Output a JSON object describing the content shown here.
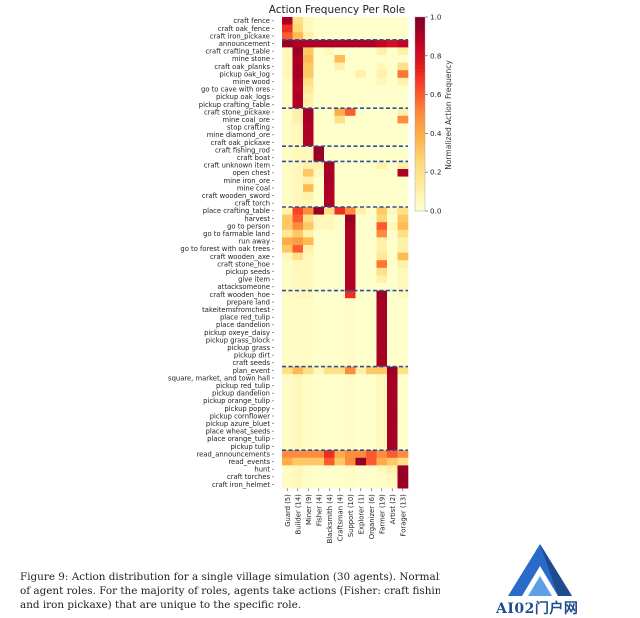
{
  "chart_data": {
    "type": "heatmap",
    "title": "Action Frequency Per Role",
    "colorbar_label": "Normalized Action Frequency",
    "colorbar_ticks": [
      0.0,
      0.2,
      0.4,
      0.6,
      0.8,
      1.0
    ],
    "colormap": [
      "#ffffcc",
      "#ffeda0",
      "#fed976",
      "#feb24c",
      "#fd8d3c",
      "#fc4e2a",
      "#e31a1c",
      "#bd0026",
      "#800026"
    ],
    "separator_color": "#2b4fa0",
    "roles": [
      "Guard (5)",
      "Builder (14)",
      "Miner (9)",
      "Fisher (4)",
      "Blacksmith (4)",
      "Craftsman (4)",
      "Support (10)",
      "Explorer (1)",
      "Organizer (6)",
      "Farmer (19)",
      "Artist (2)",
      "Forager (13)"
    ],
    "actions": [
      "craft fence",
      "craft oak_fence",
      "craft iron_pickaxe",
      "announcement",
      "craft crafting_table",
      "mine stone",
      "craft oak_planks",
      "pickup oak_log",
      "mine wood",
      "go to cave with ores",
      "pickup oak_logs",
      "pickup crafting_table",
      "craft stone_pickaxe",
      "mine coal_ore",
      "stop crafting",
      "mine diamond_ore",
      "craft oak_pickaxe",
      "craft fishing_rod",
      "craft boat",
      "craft unknown item",
      "open chest",
      "mine iron_ore",
      "mine coal",
      "craft wooden_sword",
      "craft torch",
      "place crafting_table",
      "harvest",
      "go to person",
      "go to farmable land",
      "run away",
      "go to forest with oak trees",
      "craft wooden_axe",
      "craft stone_hoe",
      "pickup seeds",
      "give item",
      "attacksomeone",
      "craft wooden_hoe",
      "prepare land",
      "takeitemsfromchest",
      "place red_tulip",
      "place dandelion",
      "pickup oxeye_daisy",
      "pickup grass_block",
      "pickup grass",
      "pickup dirt",
      "craft seeds",
      "plan_event",
      "square, market, and town hall",
      "pickup red_tulip",
      "pickup dandelion",
      "pickup orange_tulip",
      "pickup poppy",
      "pickup cornflower",
      "pickup azure_bluet",
      "place wheat_seeds",
      "place orange_tulip",
      "pickup tulip",
      "read_announcements",
      "read_events",
      "hunt",
      "craft torches",
      "craft iron_helmet"
    ],
    "separators_after_row": [
      2,
      11,
      16,
      18,
      24,
      35,
      45,
      56
    ],
    "values": [
      [
        0.9,
        0.2,
        0.05,
        0,
        0,
        0,
        0,
        0,
        0,
        0,
        0,
        0
      ],
      [
        0.7,
        0.25,
        0.05,
        0,
        0,
        0,
        0,
        0,
        0,
        0,
        0,
        0
      ],
      [
        0.6,
        0.35,
        0.1,
        0,
        0,
        0,
        0,
        0,
        0,
        0,
        0,
        0
      ],
      [
        0.95,
        0.9,
        0.9,
        0.9,
        0.9,
        0.9,
        0.9,
        0.9,
        0.9,
        0.85,
        0.8,
        0.85
      ],
      [
        0.05,
        0.95,
        0.3,
        0,
        0.05,
        0,
        0,
        0,
        0,
        0.1,
        0,
        0.1
      ],
      [
        0.05,
        0.9,
        0.35,
        0,
        0,
        0.35,
        0,
        0,
        0,
        0,
        0,
        0
      ],
      [
        0.05,
        0.92,
        0.3,
        0,
        0,
        0.1,
        0,
        0,
        0,
        0.05,
        0,
        0.2
      ],
      [
        0.05,
        0.92,
        0.3,
        0,
        0,
        0,
        0,
        0.1,
        0,
        0.1,
        0,
        0.55
      ],
      [
        0.03,
        0.9,
        0.2,
        0,
        0,
        0,
        0,
        0,
        0,
        0.05,
        0,
        0.1
      ],
      [
        0.02,
        0.88,
        0.15,
        0,
        0,
        0,
        0,
        0,
        0,
        0,
        0,
        0
      ],
      [
        0.02,
        0.9,
        0.1,
        0,
        0,
        0,
        0,
        0,
        0,
        0,
        0,
        0
      ],
      [
        0.02,
        0.9,
        0.1,
        0,
        0,
        0,
        0,
        0,
        0,
        0,
        0,
        0
      ],
      [
        0.02,
        0.1,
        0.92,
        0,
        0,
        0.4,
        0.6,
        0,
        0,
        0,
        0,
        0.1
      ],
      [
        0.02,
        0.1,
        0.92,
        0,
        0,
        0.2,
        0,
        0,
        0,
        0,
        0,
        0.5
      ],
      [
        0.02,
        0.05,
        0.9,
        0,
        0,
        0,
        0,
        0,
        0,
        0,
        0,
        0
      ],
      [
        0.02,
        0.05,
        0.9,
        0,
        0,
        0,
        0,
        0,
        0,
        0,
        0,
        0
      ],
      [
        0.02,
        0.05,
        0.9,
        0,
        0,
        0,
        0,
        0,
        0,
        0,
        0,
        0
      ],
      [
        0.02,
        0.05,
        0.05,
        0.95,
        0,
        0,
        0,
        0,
        0,
        0,
        0,
        0
      ],
      [
        0.02,
        0.05,
        0.05,
        0.95,
        0,
        0,
        0,
        0,
        0,
        0,
        0,
        0
      ],
      [
        0.02,
        0.05,
        0.1,
        0.1,
        0.92,
        0,
        0,
        0,
        0,
        0.1,
        0,
        0.1
      ],
      [
        0.02,
        0.05,
        0.3,
        0.05,
        0.92,
        0,
        0,
        0,
        0,
        0,
        0,
        0.9
      ],
      [
        0.02,
        0.05,
        0.1,
        0,
        0.92,
        0,
        0,
        0,
        0,
        0,
        0,
        0
      ],
      [
        0.02,
        0.05,
        0.35,
        0,
        0.9,
        0,
        0,
        0,
        0,
        0,
        0,
        0
      ],
      [
        0.02,
        0.05,
        0.1,
        0,
        0.9,
        0,
        0,
        0,
        0,
        0,
        0,
        0
      ],
      [
        0.02,
        0.05,
        0.05,
        0,
        0.9,
        0,
        0,
        0,
        0,
        0,
        0,
        0
      ],
      [
        0.1,
        0.65,
        0.5,
        0.95,
        0.2,
        0.7,
        0.5,
        0.1,
        0,
        0.3,
        0.05,
        0.2
      ],
      [
        0.3,
        0.6,
        0.2,
        0.05,
        0.05,
        0,
        0.95,
        0,
        0,
        0.25,
        0,
        0.3
      ],
      [
        0.3,
        0.5,
        0.3,
        0.05,
        0.05,
        0,
        0.92,
        0,
        0,
        0.6,
        0.05,
        0.35
      ],
      [
        0.15,
        0.3,
        0.1,
        0,
        0,
        0,
        0.9,
        0,
        0,
        0.5,
        0,
        0.2
      ],
      [
        0.4,
        0.45,
        0.35,
        0,
        0,
        0,
        0.9,
        0,
        0,
        0.1,
        0,
        0.1
      ],
      [
        0.3,
        0.6,
        0.1,
        0,
        0,
        0,
        0.9,
        0,
        0,
        0.1,
        0,
        0.1
      ],
      [
        0.05,
        0.2,
        0.05,
        0,
        0,
        0,
        0.9,
        0,
        0,
        0.15,
        0,
        0.35
      ],
      [
        0.02,
        0.05,
        0.05,
        0,
        0,
        0,
        0.9,
        0,
        0,
        0.55,
        0,
        0.1
      ],
      [
        0.02,
        0.05,
        0.05,
        0,
        0,
        0,
        0.9,
        0,
        0,
        0.2,
        0,
        0.05
      ],
      [
        0.02,
        0.05,
        0.05,
        0,
        0,
        0,
        0.9,
        0,
        0,
        0.1,
        0,
        0.05
      ],
      [
        0.02,
        0.05,
        0.05,
        0,
        0,
        0,
        0.9,
        0,
        0,
        0,
        0,
        0.05
      ],
      [
        0.02,
        0.05,
        0.05,
        0,
        0,
        0,
        0.7,
        0,
        0,
        0.95,
        0,
        0.05
      ],
      [
        0.02,
        0.02,
        0.02,
        0,
        0,
        0,
        0.02,
        0,
        0,
        0.92,
        0,
        0
      ],
      [
        0.02,
        0.02,
        0.02,
        0,
        0,
        0,
        0.02,
        0,
        0,
        0.92,
        0,
        0
      ],
      [
        0.02,
        0.02,
        0.02,
        0,
        0,
        0,
        0.02,
        0,
        0,
        0.92,
        0,
        0
      ],
      [
        0.02,
        0.02,
        0.02,
        0,
        0,
        0,
        0.02,
        0,
        0,
        0.92,
        0,
        0
      ],
      [
        0.02,
        0.02,
        0.02,
        0,
        0,
        0,
        0.02,
        0,
        0,
        0.92,
        0,
        0
      ],
      [
        0.02,
        0.02,
        0.02,
        0,
        0,
        0,
        0.02,
        0,
        0,
        0.92,
        0,
        0
      ],
      [
        0.02,
        0.02,
        0.02,
        0,
        0,
        0,
        0.02,
        0,
        0,
        0.92,
        0,
        0
      ],
      [
        0.02,
        0.02,
        0.02,
        0,
        0,
        0,
        0.02,
        0,
        0,
        0.92,
        0,
        0
      ],
      [
        0.02,
        0.02,
        0.02,
        0,
        0,
        0,
        0.02,
        0,
        0,
        0.92,
        0,
        0
      ],
      [
        0.2,
        0.35,
        0.2,
        0.05,
        0.2,
        0.2,
        0.5,
        0.1,
        0.3,
        0.3,
        0.95,
        0.2
      ],
      [
        0.02,
        0.05,
        0.02,
        0,
        0,
        0,
        0.02,
        0,
        0,
        0.05,
        0.92,
        0
      ],
      [
        0.02,
        0.05,
        0.02,
        0,
        0,
        0,
        0.02,
        0,
        0,
        0.05,
        0.92,
        0
      ],
      [
        0.02,
        0.05,
        0.02,
        0,
        0,
        0,
        0.02,
        0,
        0,
        0.05,
        0.92,
        0
      ],
      [
        0.02,
        0.05,
        0.02,
        0,
        0,
        0,
        0.02,
        0,
        0,
        0.05,
        0.92,
        0
      ],
      [
        0.02,
        0.05,
        0.02,
        0,
        0,
        0,
        0.02,
        0,
        0,
        0.05,
        0.92,
        0
      ],
      [
        0.02,
        0.05,
        0.02,
        0,
        0,
        0,
        0.02,
        0,
        0,
        0.05,
        0.92,
        0
      ],
      [
        0.02,
        0.05,
        0.02,
        0,
        0,
        0,
        0.02,
        0,
        0,
        0.05,
        0.92,
        0
      ],
      [
        0.02,
        0.05,
        0.02,
        0,
        0,
        0,
        0.02,
        0,
        0,
        0.05,
        0.92,
        0
      ],
      [
        0.02,
        0.05,
        0.02,
        0,
        0,
        0,
        0.02,
        0,
        0,
        0.05,
        0.92,
        0
      ],
      [
        0.02,
        0.05,
        0.02,
        0,
        0,
        0,
        0.02,
        0,
        0,
        0.05,
        0.92,
        0
      ],
      [
        0.5,
        0.5,
        0.5,
        0.5,
        0.7,
        0.4,
        0.5,
        0.5,
        0.6,
        0.5,
        0.6,
        0.5
      ],
      [
        0.4,
        0.3,
        0.3,
        0.3,
        0.6,
        0.3,
        0.5,
        0.95,
        0.6,
        0.4,
        0.3,
        0.2
      ],
      [
        0.02,
        0.05,
        0.02,
        0,
        0,
        0,
        0.02,
        0,
        0,
        0.05,
        0.1,
        0.95
      ],
      [
        0.02,
        0.05,
        0.02,
        0,
        0,
        0,
        0.02,
        0,
        0,
        0.02,
        0.05,
        0.95
      ],
      [
        0.02,
        0.05,
        0.02,
        0,
        0,
        0,
        0.02,
        0,
        0,
        0.02,
        0.02,
        0.95
      ]
    ]
  },
  "caption": {
    "line1": "Figure 9: Action distribution for a single village simulation (30 agents). Normalized act",
    "line2": "of agent roles.  For the majority of roles, agents take actions (Fisher: craft fishing rods anc",
    "line3": "and iron pickaxe) that are unique to the specific role."
  },
  "watermark": {
    "text": "AI02门户网",
    "logo": "triangle-logo"
  }
}
